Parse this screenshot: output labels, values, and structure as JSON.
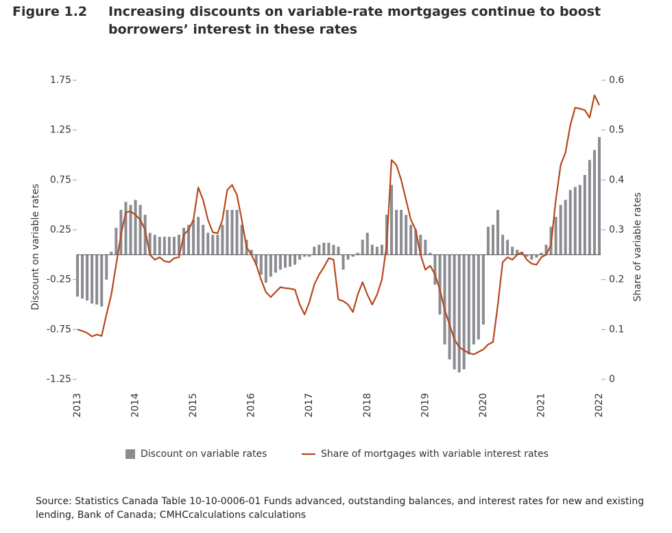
{
  "chart_data": {
    "type": "bar",
    "label": "Figure 1.2",
    "title": "Increasing discounts on variable-rate mortgages continue to boost borrowers’ interest in these rates",
    "y_label": "Discount on variable rates",
    "y2_label": "Share of variable rates",
    "source": "Source: Statistics Canada Table 10-10-0006-01 Funds advanced, outstanding balances, and interest rates for new and existing lending, Bank of Canada; CMHCcalculations calculations",
    "categories": [
      "2013",
      null,
      null,
      null,
      null,
      null,
      null,
      null,
      null,
      null,
      null,
      null,
      "2014",
      null,
      null,
      null,
      null,
      null,
      null,
      null,
      null,
      null,
      null,
      null,
      "2015",
      null,
      null,
      null,
      null,
      null,
      null,
      null,
      null,
      null,
      null,
      null,
      "2016",
      null,
      null,
      null,
      null,
      null,
      null,
      null,
      null,
      null,
      null,
      null,
      "2017",
      null,
      null,
      null,
      null,
      null,
      null,
      null,
      null,
      null,
      null,
      null,
      "2018",
      null,
      null,
      null,
      null,
      null,
      null,
      null,
      null,
      null,
      null,
      null,
      "2019",
      null,
      null,
      null,
      null,
      null,
      null,
      null,
      null,
      null,
      null,
      null,
      "2020",
      null,
      null,
      null,
      null,
      null,
      null,
      null,
      null,
      null,
      null,
      null,
      "2021",
      null,
      null,
      null,
      null,
      null,
      null,
      null,
      null,
      null,
      null,
      null,
      "2022"
    ],
    "series": [
      {
        "name": "Discount on variable rates",
        "type": "bar",
        "color": "#8a8c91",
        "values": [
          -0.42,
          -0.44,
          -0.46,
          -0.49,
          -0.5,
          -0.52,
          -0.25,
          0.03,
          0.27,
          0.45,
          0.53,
          0.5,
          0.55,
          0.5,
          0.4,
          0.22,
          0.2,
          0.18,
          0.18,
          0.18,
          0.18,
          0.2,
          0.27,
          0.3,
          0.35,
          0.38,
          0.3,
          0.22,
          0.2,
          0.2,
          0.3,
          0.45,
          0.45,
          0.45,
          0.3,
          0.15,
          0.05,
          -0.1,
          -0.2,
          -0.28,
          -0.22,
          -0.18,
          -0.15,
          -0.13,
          -0.12,
          -0.1,
          -0.05,
          -0.02,
          -0.02,
          0.08,
          0.1,
          0.12,
          0.12,
          0.1,
          0.08,
          -0.15,
          -0.05,
          -0.02,
          0.02,
          0.15,
          0.22,
          0.1,
          0.08,
          0.1,
          0.4,
          0.7,
          0.45,
          0.45,
          0.4,
          0.3,
          0.25,
          0.2,
          0.15,
          0.02,
          -0.3,
          -0.6,
          -0.9,
          -1.05,
          -1.15,
          -1.18,
          -1.15,
          -1.0,
          -0.9,
          -0.85,
          -0.7,
          0.28,
          0.3,
          0.45,
          0.2,
          0.15,
          0.08,
          0.05,
          0.02,
          -0.02,
          -0.05,
          -0.03,
          0.02,
          0.1,
          0.28,
          0.38,
          0.5,
          0.55,
          0.65,
          0.68,
          0.7,
          0.8,
          0.95,
          1.05,
          1.18
        ]
      },
      {
        "name": "Share of mortgages with variable interest rates",
        "type": "line",
        "axis": "y2",
        "color": "#b5461c",
        "values": [
          0.1,
          0.097,
          0.093,
          0.086,
          0.09,
          0.087,
          0.13,
          0.17,
          0.23,
          0.29,
          0.335,
          0.337,
          0.33,
          0.32,
          0.3,
          0.25,
          0.24,
          0.245,
          0.237,
          0.235,
          0.243,
          0.245,
          0.29,
          0.3,
          0.32,
          0.385,
          0.36,
          0.32,
          0.295,
          0.293,
          0.32,
          0.38,
          0.39,
          0.37,
          0.32,
          0.265,
          0.25,
          0.23,
          0.2,
          0.175,
          0.165,
          0.175,
          0.185,
          0.183,
          0.182,
          0.18,
          0.15,
          0.13,
          0.155,
          0.19,
          0.21,
          0.225,
          0.243,
          0.24,
          0.16,
          0.157,
          0.15,
          0.135,
          0.17,
          0.195,
          0.17,
          0.15,
          0.17,
          0.2,
          0.27,
          0.44,
          0.43,
          0.4,
          0.36,
          0.32,
          0.3,
          0.25,
          0.22,
          0.228,
          0.21,
          0.18,
          0.14,
          0.11,
          0.08,
          0.065,
          0.058,
          0.053,
          0.05,
          0.055,
          0.06,
          0.07,
          0.075,
          0.15,
          0.235,
          0.245,
          0.24,
          0.25,
          0.255,
          0.24,
          0.232,
          0.23,
          0.245,
          0.25,
          0.27,
          0.36,
          0.43,
          0.455,
          0.51,
          0.545,
          0.543,
          0.54,
          0.525,
          0.57,
          0.55
        ]
      }
    ],
    "ylim": [
      -1.25,
      1.75
    ],
    "yticks": [
      -1.25,
      -0.75,
      -0.25,
      0.25,
      0.75,
      1.25,
      1.75
    ],
    "y2lim": [
      0,
      0.6
    ],
    "y2ticks": [
      0,
      0.1,
      0.2,
      0.3,
      0.4,
      0.5,
      0.6
    ],
    "legend": "bottom"
  }
}
